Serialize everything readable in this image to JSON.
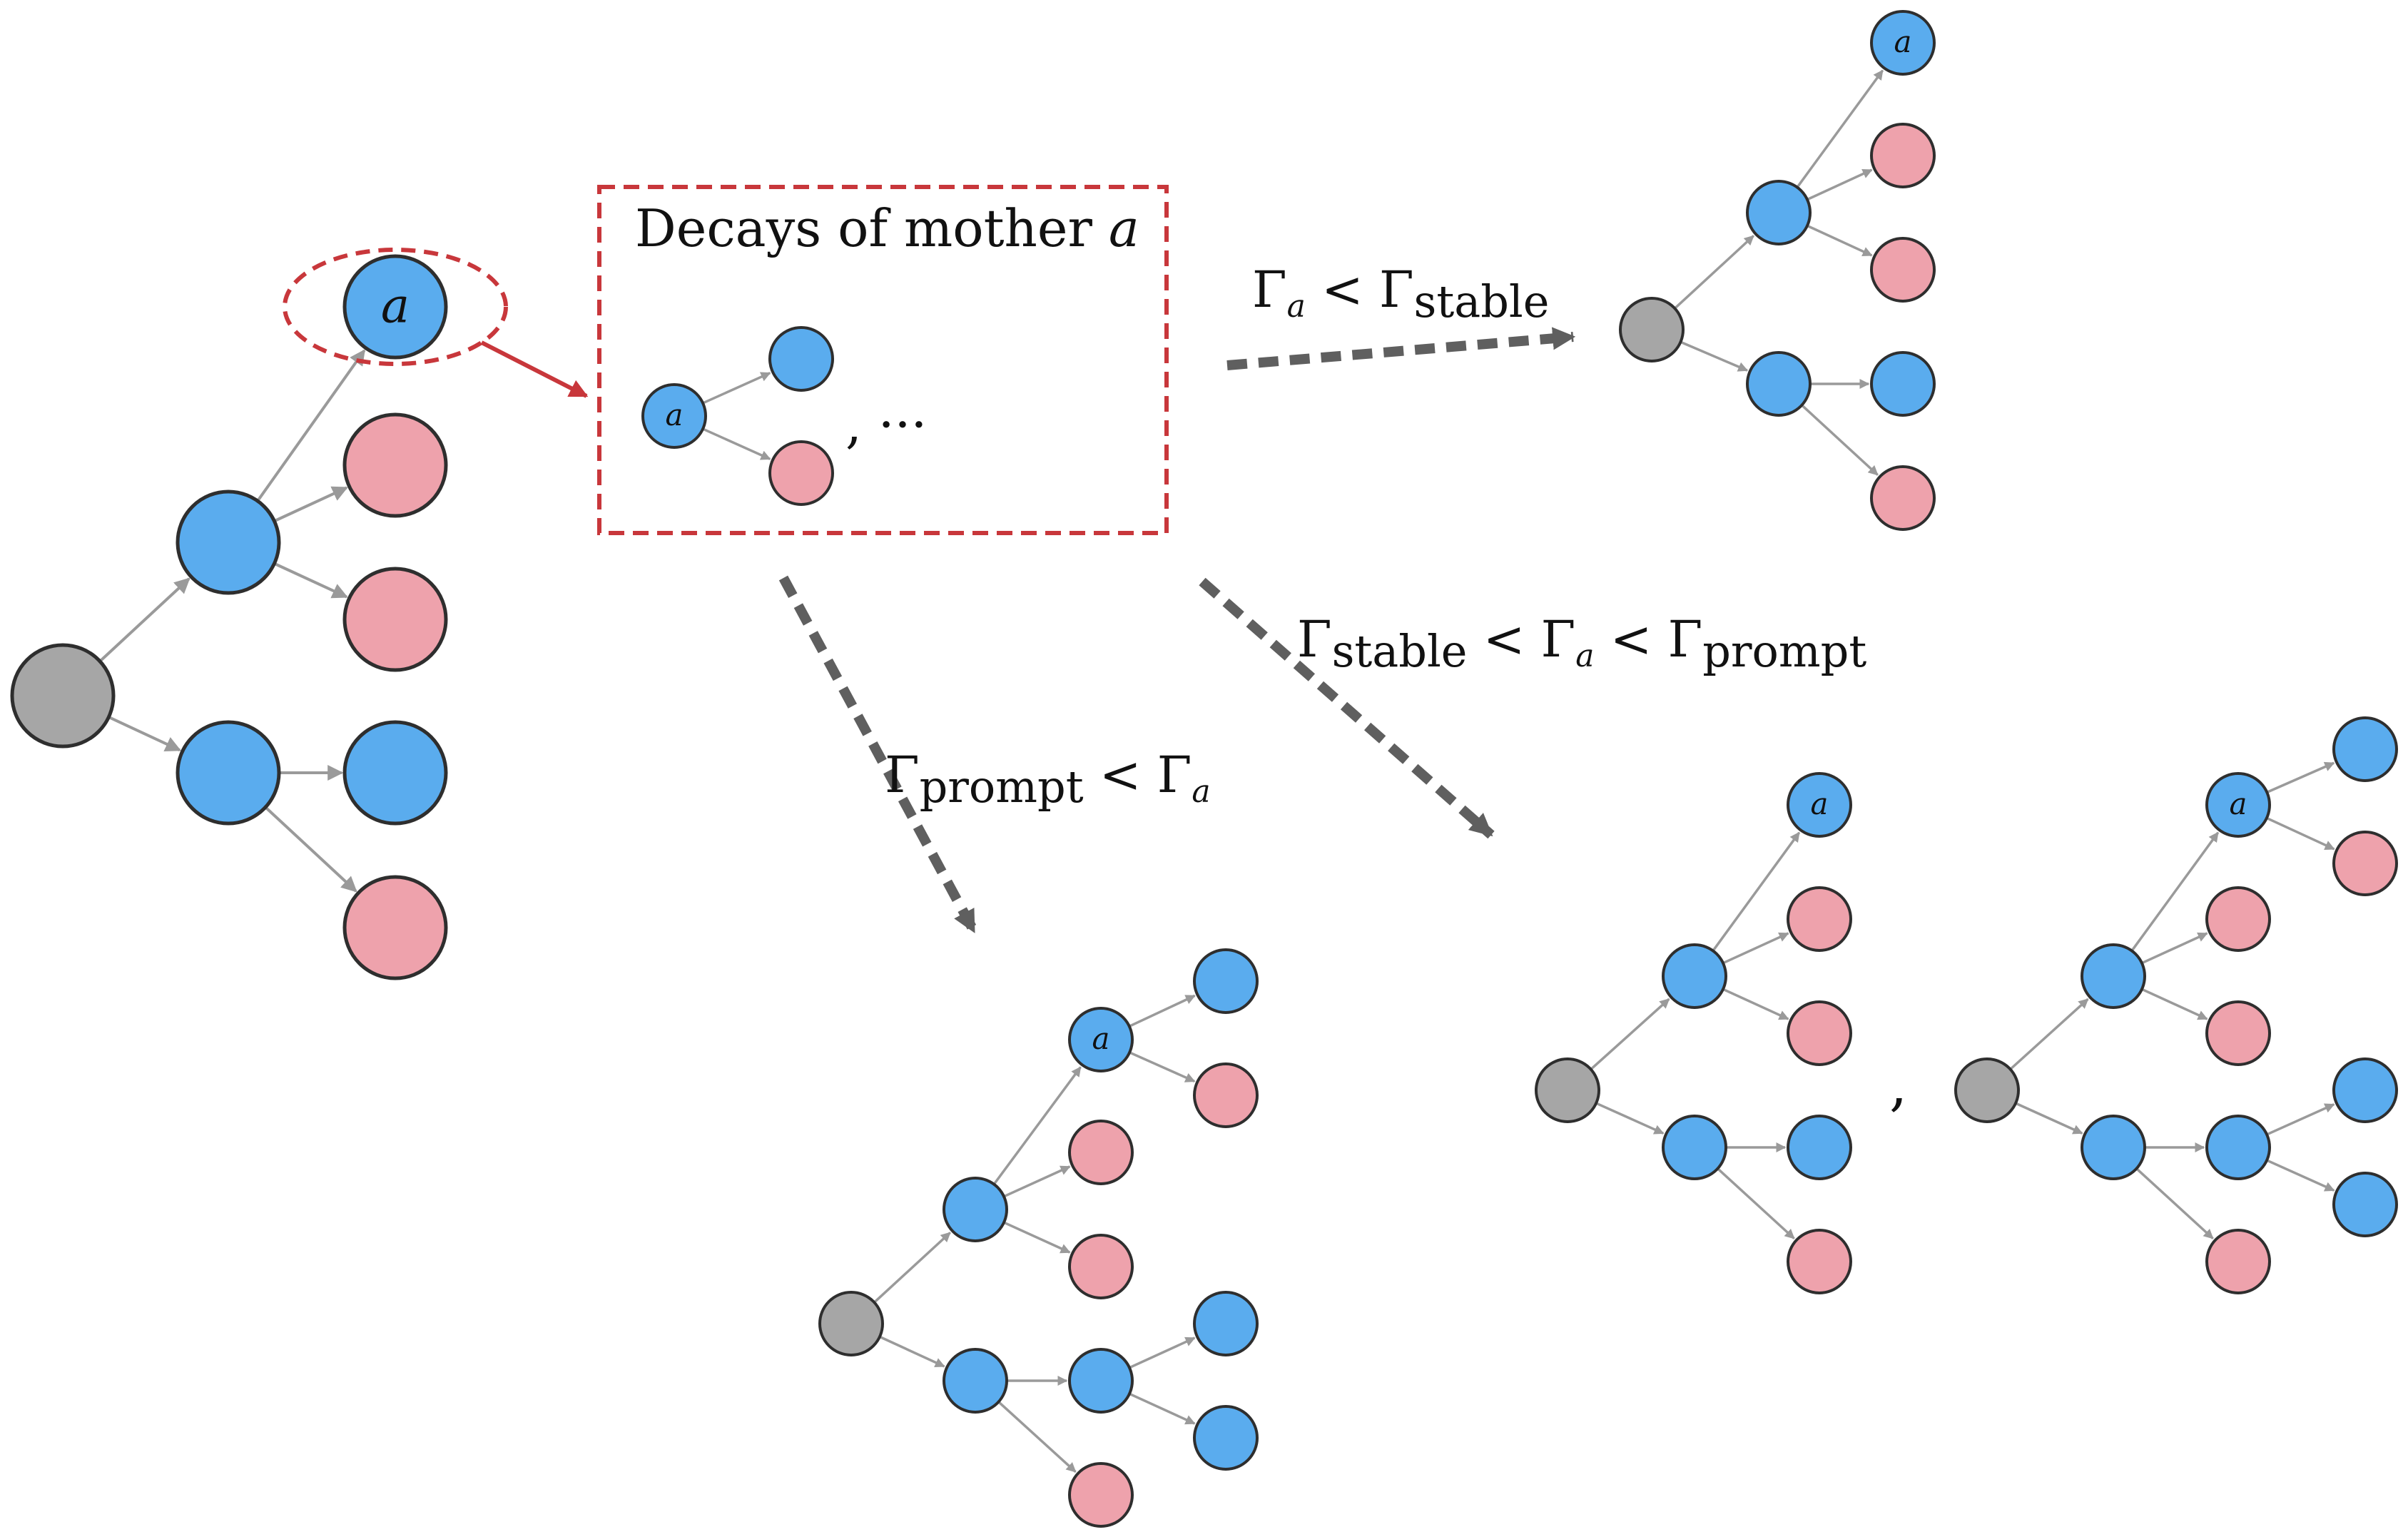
{
  "colors": {
    "blue": "#5aacee",
    "pink": "#eea2ac",
    "gray": "#a6a6a6",
    "node_stroke": "#2e2e2e",
    "edge": "#9a9a9a",
    "highlight": "#c8373b",
    "dashed_arrow": "#5f5f5f",
    "text": "#111111"
  },
  "labels": {
    "node_a": "a",
    "decays_title": "Decays of mother",
    "decays_symbol": "a",
    "ellipsis": ", ···",
    "separator": ","
  },
  "conditions": {
    "top": {
      "lhs": "Γ",
      "lhs_sub": "a",
      "op": " < Γ",
      "rhs_sub": "stable"
    },
    "middle": {
      "p1": "Γ",
      "p1_sub": "stable",
      "p2": " < Γ",
      "p2_sub": "a",
      "p3": " < Γ",
      "p3_sub": "prompt"
    },
    "bottom": {
      "p1": "Γ",
      "p1_sub": "prompt",
      "p2": " < Γ",
      "p2_sub": "a"
    }
  },
  "icons": {
    "root_node": "gray-circle",
    "blue_node": "blue-circle",
    "pink_node": "pink-circle",
    "edge_arrow": "thin-arrow",
    "highlight_ellipse": "dashed-ellipse",
    "decay_box": "dashed-rectangle",
    "transition_arrow": "dashed-arrow"
  }
}
